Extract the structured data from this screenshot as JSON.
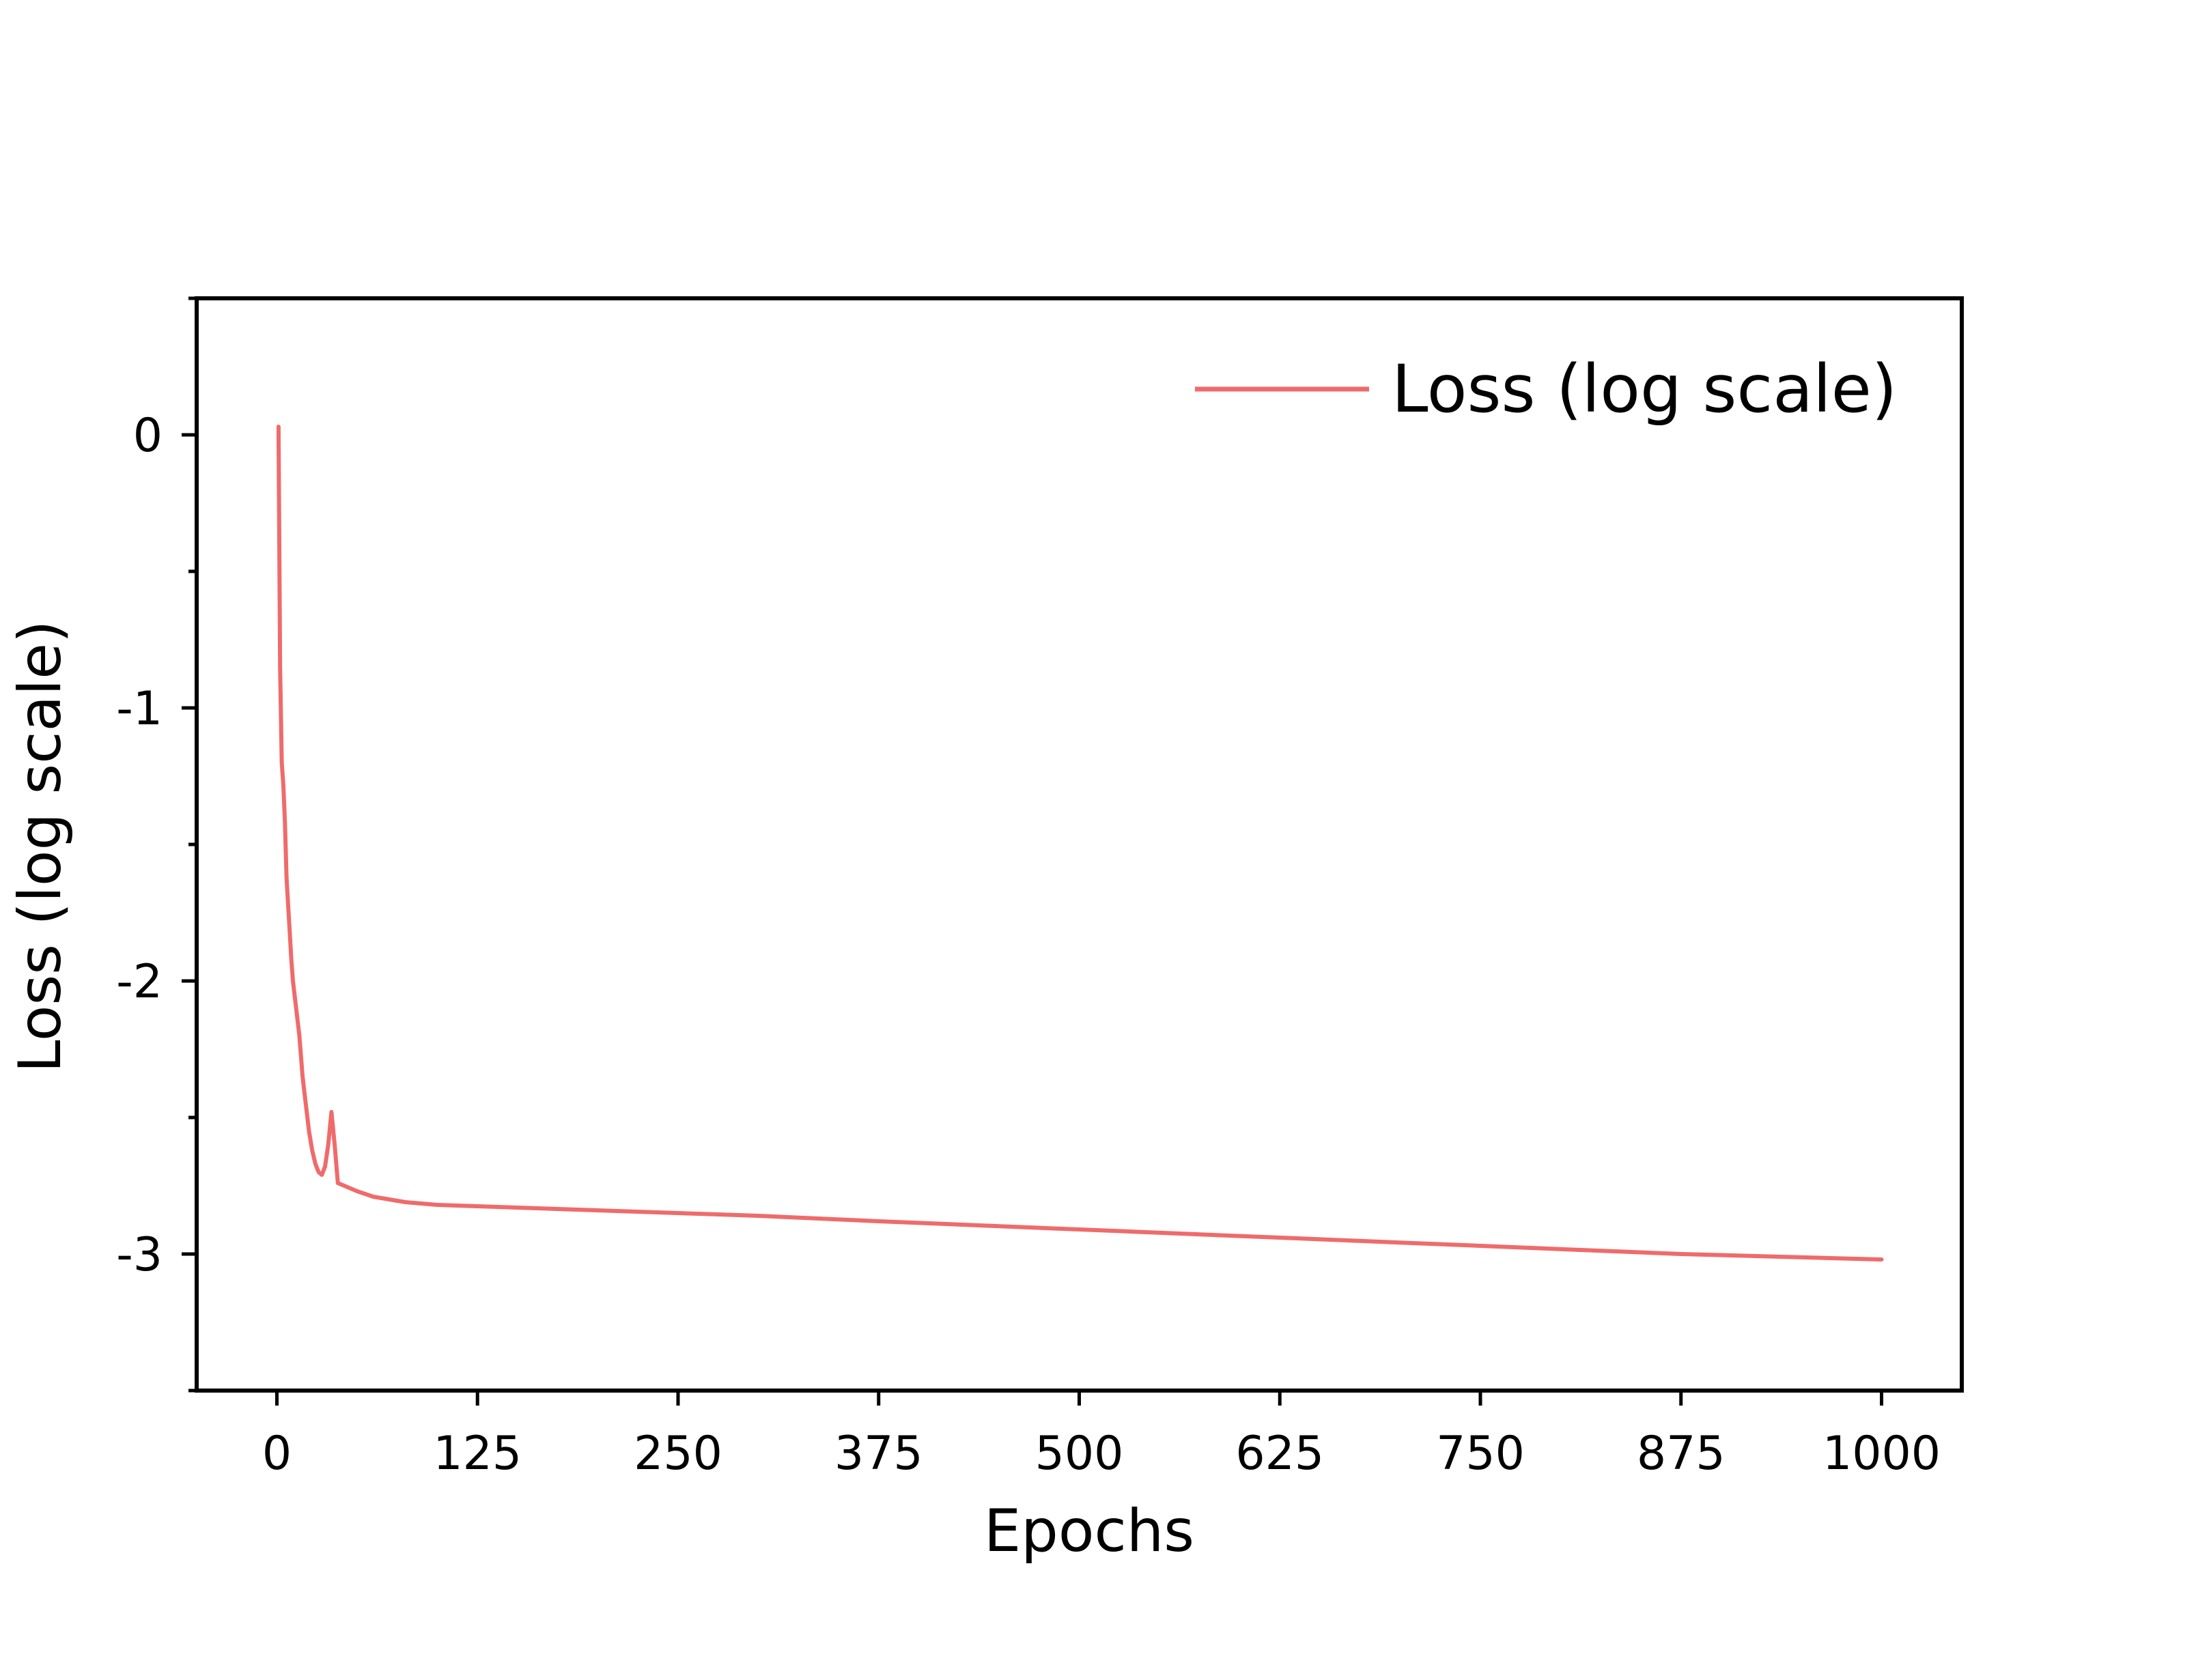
{
  "chart_data": {
    "type": "line",
    "xlabel": "Epochs",
    "ylabel": "Loss (log scale)",
    "xlim": [
      -50,
      1050
    ],
    "ylim": [
      -3.5,
      0.5
    ],
    "xticks": [
      0,
      125,
      250,
      375,
      500,
      625,
      750,
      875,
      1000
    ],
    "xtick_labels": [
      "0",
      "125",
      "250",
      "375",
      "500",
      "625",
      "750",
      "875",
      "1000"
    ],
    "yticks": [
      0,
      -1,
      -2,
      -3
    ],
    "ytick_labels": [
      "0",
      "-1",
      "-2",
      "-3"
    ],
    "y_minor_ticks": [
      0.5,
      -0.5,
      -1.5,
      -2.5,
      -3.5
    ],
    "grid": false,
    "legend_position": "top-right",
    "series": [
      {
        "name": "Loss (log scale)",
        "color": "#ef6b6b",
        "x": [
          1,
          2,
          3,
          4,
          5,
          6,
          7,
          8,
          9,
          10,
          12,
          14,
          16,
          18,
          20,
          22,
          24,
          26,
          28,
          30,
          32,
          34,
          36,
          38,
          40,
          42,
          44,
          46,
          50,
          55,
          60,
          70,
          80,
          90,
          100,
          125,
          150,
          200,
          250,
          300,
          375,
          500,
          625,
          750,
          875,
          1000
        ],
        "y": [
          0.03,
          -0.85,
          -1.2,
          -1.28,
          -1.42,
          -1.62,
          -1.72,
          -1.82,
          -1.92,
          -2.0,
          -2.1,
          -2.2,
          -2.35,
          -2.45,
          -2.55,
          -2.62,
          -2.67,
          -2.7,
          -2.71,
          -2.68,
          -2.6,
          -2.48,
          -2.6,
          -2.74,
          -2.745,
          -2.75,
          -2.755,
          -2.76,
          -2.77,
          -2.78,
          -2.79,
          -2.8,
          -2.81,
          -2.815,
          -2.82,
          -2.825,
          -2.83,
          -2.84,
          -2.85,
          -2.86,
          -2.88,
          -2.91,
          -2.94,
          -2.97,
          -3.0,
          -3.02
        ]
      }
    ]
  }
}
